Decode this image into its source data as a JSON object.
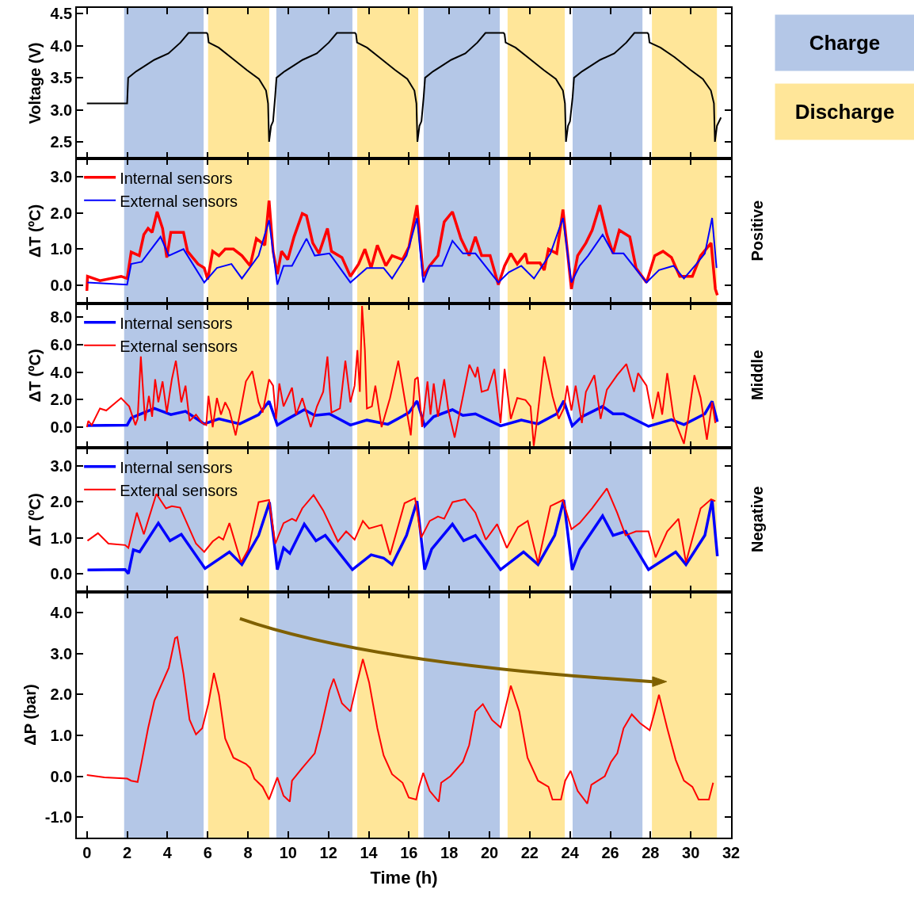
{
  "chart_data": [
    {
      "type": "line",
      "ylabel": "Voltage (V)",
      "annotations": [
        "Charge",
        "Discharge"
      ],
      "xlim": [
        -0.5,
        32
      ],
      "xticks": [
        0,
        2,
        4,
        6,
        8,
        10,
        12,
        14,
        16,
        18,
        20,
        22,
        24,
        26,
        28,
        30,
        32
      ],
      "ylim": [
        2.24,
        4.59
      ],
      "yticks": [
        {
          "value": 2.5,
          "label": "2.5"
        },
        {
          "value": 3.0,
          "label": "3.0"
        },
        {
          "value": 3.5,
          "label": "3.5"
        },
        {
          "value": 4.0,
          "label": "4.0"
        },
        {
          "value": 4.5,
          "label": "4.5"
        }
      ],
      "tick_labels": "y",
      "grid": false,
      "line_style": "solid",
      "bands": [
        {
          "axis": "x",
          "from": 1.85,
          "to": 5.8,
          "color": "#b4c7e7"
        },
        {
          "axis": "x",
          "from": 6.02,
          "to": 9.06,
          "color": "#ffe699"
        },
        {
          "axis": "x",
          "from": 9.41,
          "to": 13.19,
          "color": "#b4c7e7"
        },
        {
          "axis": "x",
          "from": 13.43,
          "to": 16.46,
          "color": "#ffe699"
        },
        {
          "axis": "x",
          "from": 16.73,
          "to": 20.51,
          "color": "#b4c7e7"
        },
        {
          "axis": "x",
          "from": 20.9,
          "to": 23.74,
          "color": "#ffe699"
        },
        {
          "axis": "x",
          "from": 24.13,
          "to": 27.6,
          "color": "#b4c7e7"
        },
        {
          "axis": "x",
          "from": 28.07,
          "to": 31.3,
          "color": "#ffe699"
        }
      ],
      "series": [
        {
          "color": "#000000",
          "x": [
            0,
            2.0,
            2.05,
            2.45,
            2.85,
            3.35,
            4.05,
            4.65,
            5.05,
            5.95,
            6.0,
            6.05,
            6.55,
            7.15,
            7.95,
            8.55,
            8.9,
            9.0,
            9.05,
            9.15,
            9.25,
            9.35,
            9.42,
            9.82,
            10.22,
            10.72,
            11.42,
            12.02,
            12.42,
            13.32,
            13.37,
            13.42,
            13.92,
            14.52,
            15.32,
            15.92,
            16.27,
            16.37,
            16.42,
            16.52,
            16.62,
            16.73,
            16.8,
            17.2,
            17.6,
            18.1,
            18.8,
            19.4,
            19.8,
            20.7,
            20.75,
            20.8,
            21.3,
            21.9,
            22.7,
            23.3,
            23.65,
            23.75,
            23.8,
            23.9,
            24.0,
            24.13,
            24.2,
            24.6,
            25.0,
            25.5,
            26.2,
            26.8,
            27.2,
            27.85,
            27.9,
            27.95,
            28.5,
            29.2,
            30.0,
            30.6,
            31.0,
            31.15,
            31.2,
            31.3,
            31.5
          ],
          "values": [
            3.1,
            3.1,
            3.5,
            3.6,
            3.68,
            3.78,
            3.88,
            4.05,
            4.2,
            4.2,
            4.18,
            4.05,
            3.97,
            3.82,
            3.62,
            3.48,
            3.3,
            3.1,
            2.5,
            2.75,
            2.82,
            3.2,
            3.5,
            3.6,
            3.68,
            3.78,
            3.88,
            4.05,
            4.2,
            4.2,
            4.18,
            4.05,
            3.97,
            3.82,
            3.62,
            3.48,
            3.3,
            3.1,
            2.5,
            2.75,
            2.82,
            3.2,
            3.5,
            3.6,
            3.68,
            3.78,
            3.88,
            4.05,
            4.2,
            4.2,
            4.18,
            4.05,
            3.97,
            3.82,
            3.62,
            3.48,
            3.3,
            3.1,
            2.5,
            2.75,
            2.82,
            3.2,
            3.5,
            3.6,
            3.68,
            3.78,
            3.88,
            4.05,
            4.2,
            4.2,
            4.18,
            4.05,
            3.97,
            3.82,
            3.62,
            3.48,
            3.3,
            3.1,
            2.5,
            2.75,
            2.88
          ]
        }
      ]
    },
    {
      "type": "line",
      "ylabel": "ΔT (ºC)",
      "annotations": [
        "Positive"
      ],
      "xlim": [
        -0.5,
        32
      ],
      "xticks": [
        0,
        2,
        4,
        6,
        8,
        10,
        12,
        14,
        16,
        18,
        20,
        22,
        24,
        26,
        28,
        30,
        32
      ],
      "ylim": [
        -0.5,
        3.5
      ],
      "yticks": [
        {
          "value": 0,
          "label": "0.0"
        },
        {
          "value": 1,
          "label": "1.0"
        },
        {
          "value": 2,
          "label": "2.0"
        },
        {
          "value": 3,
          "label": "3.0"
        }
      ],
      "tick_labels": "y",
      "grid": false,
      "legend": "top left",
      "line_style": "solid",
      "bands": [
        {
          "axis": "x",
          "from": 1.85,
          "to": 5.8,
          "color": "#b4c7e7"
        },
        {
          "axis": "x",
          "from": 6.02,
          "to": 9.06,
          "color": "#ffe699"
        },
        {
          "axis": "x",
          "from": 9.41,
          "to": 13.19,
          "color": "#b4c7e7"
        },
        {
          "axis": "x",
          "from": 13.43,
          "to": 16.46,
          "color": "#ffe699"
        },
        {
          "axis": "x",
          "from": 16.73,
          "to": 20.51,
          "color": "#b4c7e7"
        },
        {
          "axis": "x",
          "from": 20.9,
          "to": 23.74,
          "color": "#ffe699"
        },
        {
          "axis": "x",
          "from": 24.13,
          "to": 27.6,
          "color": "#b4c7e7"
        },
        {
          "axis": "x",
          "from": 28.07,
          "to": 31.3,
          "color": "#ffe699"
        }
      ],
      "series": [
        {
          "name": "Internal sensors",
          "color": "#ff0000",
          "x": [
            0.0,
            0.03,
            0.65,
            1.7,
            2.0,
            2.2,
            2.6,
            2.83,
            3.04,
            3.24,
            3.49,
            3.76,
            3.97,
            4.17,
            4.8,
            5.0,
            5.52,
            5.83,
            6.0,
            6.25,
            6.56,
            6.87,
            7.28,
            7.7,
            8.11,
            8.42,
            8.84,
            9.05,
            9.25,
            9.46,
            9.67,
            9.98,
            10.29,
            10.7,
            10.91,
            11.22,
            11.53,
            11.95,
            12.15,
            12.67,
            13.09,
            13.5,
            13.81,
            14.12,
            14.43,
            14.85,
            15.16,
            15.68,
            16.0,
            16.4,
            16.71,
            17.03,
            17.44,
            17.75,
            18.16,
            18.58,
            18.99,
            19.3,
            19.61,
            20.03,
            20.44,
            20.75,
            21.06,
            21.38,
            21.79,
            21.89,
            22.51,
            22.72,
            22.93,
            23.34,
            23.65,
            24.07,
            24.38,
            24.79,
            25.1,
            25.48,
            25.83,
            26.14,
            26.45,
            26.97,
            27.28,
            27.8,
            28.21,
            28.62,
            29.04,
            29.45,
            30.08,
            30.49,
            31.01,
            31.22,
            31.32
          ],
          "values": [
            -0.15,
            0.25,
            0.13,
            0.25,
            0.19,
            0.92,
            0.82,
            1.4,
            1.57,
            1.46,
            2.03,
            1.57,
            0.77,
            1.46,
            1.46,
            0.94,
            0.59,
            0.48,
            0.16,
            0.94,
            0.82,
            1.0,
            1.0,
            0.82,
            0.54,
            1.29,
            1.11,
            2.34,
            0.94,
            0.31,
            0.94,
            0.71,
            1.34,
            1.98,
            1.92,
            1.17,
            0.88,
            1.57,
            0.94,
            0.77,
            0.25,
            0.59,
            1.0,
            0.48,
            1.11,
            0.54,
            0.82,
            0.71,
            1.06,
            2.21,
            0.25,
            0.54,
            0.82,
            1.75,
            2.03,
            1.29,
            0.82,
            1.34,
            0.82,
            0.82,
            0.02,
            0.54,
            0.88,
            0.59,
            0.88,
            0.62,
            0.62,
            0.42,
            1.0,
            0.88,
            2.09,
            -0.1,
            0.82,
            1.17,
            1.52,
            2.21,
            1.4,
            0.88,
            1.52,
            1.34,
            0.48,
            0.08,
            0.82,
            0.94,
            0.77,
            0.25,
            0.25,
            0.82,
            1.17,
            -0.1,
            -0.27
          ]
        },
        {
          "name": "External sensors",
          "color": "#0000ff",
          "x": [
            0.03,
            2.0,
            2.2,
            2.72,
            3.66,
            4.07,
            4.8,
            5.83,
            6.46,
            7.18,
            7.7,
            8.53,
            9.05,
            9.46,
            9.77,
            10.19,
            10.91,
            11.32,
            12.05,
            13.09,
            13.91,
            14.74,
            15.16,
            15.88,
            16.4,
            16.71,
            17.03,
            17.65,
            18.16,
            18.68,
            19.3,
            20.44,
            20.96,
            21.58,
            22.21,
            23.03,
            23.65,
            24.07,
            24.48,
            24.9,
            25.62,
            26.14,
            26.66,
            27.8,
            28.42,
            29.14,
            29.66,
            30.28,
            30.7,
            31.06,
            31.28
          ],
          "values": [
            0.08,
            0.02,
            0.59,
            0.65,
            1.34,
            0.82,
            1.0,
            0.08,
            0.48,
            0.59,
            0.19,
            0.82,
            1.8,
            0.02,
            0.54,
            0.54,
            1.29,
            0.82,
            0.88,
            0.08,
            0.48,
            0.48,
            0.19,
            0.82,
            1.86,
            0.08,
            0.54,
            0.54,
            1.23,
            0.88,
            0.88,
            0.08,
            0.36,
            0.54,
            0.19,
            0.88,
            1.86,
            0.08,
            0.54,
            0.82,
            1.4,
            0.88,
            0.88,
            0.08,
            0.42,
            0.54,
            0.19,
            0.59,
            0.88,
            1.86,
            0.48
          ]
        }
      ]
    },
    {
      "type": "line",
      "ylabel": "ΔT (ºC)",
      "annotations": [
        "Middle"
      ],
      "xlim": [
        -0.5,
        32
      ],
      "xticks": [
        0,
        2,
        4,
        6,
        8,
        10,
        12,
        14,
        16,
        18,
        20,
        22,
        24,
        26,
        28,
        30,
        32
      ],
      "ylim": [
        -1.5,
        9
      ],
      "yticks": [
        {
          "value": 0,
          "label": "0.0"
        },
        {
          "value": 2,
          "label": "2.0"
        },
        {
          "value": 4,
          "label": "4.0"
        },
        {
          "value": 6,
          "label": "6.0"
        },
        {
          "value": 8,
          "label": "8.0"
        }
      ],
      "tick_labels": "y",
      "grid": false,
      "legend": "top left",
      "line_style": "solid",
      "bands": [
        {
          "axis": "x",
          "from": 1.85,
          "to": 5.8,
          "color": "#b4c7e7"
        },
        {
          "axis": "x",
          "from": 6.02,
          "to": 9.06,
          "color": "#ffe699"
        },
        {
          "axis": "x",
          "from": 9.41,
          "to": 13.19,
          "color": "#b4c7e7"
        },
        {
          "axis": "x",
          "from": 13.43,
          "to": 16.46,
          "color": "#ffe699"
        },
        {
          "axis": "x",
          "from": 16.73,
          "to": 20.51,
          "color": "#b4c7e7"
        },
        {
          "axis": "x",
          "from": 20.9,
          "to": 23.74,
          "color": "#ffe699"
        },
        {
          "axis": "x",
          "from": 24.13,
          "to": 27.6,
          "color": "#b4c7e7"
        },
        {
          "axis": "x",
          "from": 28.07,
          "to": 31.3,
          "color": "#ffe699"
        }
      ],
      "series": [
        {
          "name": "Internal sensors",
          "color": "#0000ff",
          "x": [
            0.03,
            2.0,
            2.2,
            3.35,
            4.17,
            4.9,
            5.83,
            6.56,
            7.59,
            8.53,
            9.05,
            9.46,
            9.98,
            10.8,
            11.32,
            12.05,
            13.09,
            13.91,
            14.95,
            16.0,
            16.4,
            16.78,
            17.23,
            18.16,
            18.68,
            19.3,
            20.55,
            21.58,
            22.41,
            23.34,
            23.69,
            24.11,
            24.59,
            25.62,
            26.14,
            26.66,
            27.9,
            29.04,
            29.66,
            30.7,
            31.06,
            31.32
          ],
          "values": [
            0.12,
            0.15,
            0.67,
            1.36,
            0.91,
            1.15,
            0.24,
            0.6,
            0.24,
            0.91,
            1.88,
            0.15,
            0.6,
            1.27,
            0.85,
            0.97,
            0.15,
            0.51,
            0.21,
            1.06,
            1.91,
            0.09,
            0.76,
            1.27,
            0.85,
            0.97,
            0.09,
            0.51,
            0.24,
            0.97,
            1.91,
            0.09,
            0.76,
            1.51,
            0.97,
            0.97,
            0.06,
            0.54,
            0.18,
            0.97,
            1.88,
            0.39
          ]
        },
        {
          "name": "External sensors",
          "color": "#ff0000",
          "x": [
            0.0,
            0.07,
            0.24,
            0.65,
            0.96,
            1.7,
            2.1,
            2.41,
            2.52,
            2.68,
            2.89,
            3.08,
            3.24,
            3.39,
            3.55,
            3.76,
            3.97,
            4.22,
            4.42,
            4.69,
            4.9,
            5.1,
            5.42,
            5.73,
            5.93,
            6.04,
            6.25,
            6.46,
            6.66,
            6.87,
            7.08,
            7.39,
            7.59,
            7.9,
            8.22,
            8.53,
            8.73,
            9.05,
            9.25,
            9.4,
            9.56,
            9.77,
            10.19,
            10.39,
            10.7,
            11.12,
            11.43,
            11.74,
            11.95,
            12.15,
            12.57,
            12.84,
            13.09,
            13.3,
            13.44,
            13.56,
            13.67,
            13.81,
            13.91,
            14.16,
            14.33,
            14.64,
            15.06,
            15.47,
            15.78,
            16.09,
            16.3,
            16.44,
            16.65,
            16.92,
            17.07,
            17.23,
            17.44,
            17.75,
            17.96,
            18.27,
            18.58,
            19.0,
            19.3,
            19.41,
            19.61,
            19.92,
            20.24,
            20.55,
            20.75,
            21.06,
            21.38,
            21.79,
            22.04,
            22.2,
            22.37,
            22.72,
            23.13,
            23.44,
            23.69,
            23.86,
            24.07,
            24.28,
            24.59,
            24.79,
            25.21,
            25.52,
            25.83,
            26.34,
            26.8,
            27.18,
            27.38,
            27.8,
            28.11,
            28.38,
            28.58,
            28.83,
            29.14,
            29.66,
            29.87,
            30.18,
            30.49,
            30.8,
            31.06,
            31.22
          ],
          "values": [
            0.0,
            0.45,
            0.15,
            1.36,
            1.21,
            2.12,
            1.51,
            0.15,
            0.6,
            5.14,
            0.45,
            2.27,
            0.76,
            3.48,
            1.81,
            3.33,
            1.06,
            3.48,
            4.84,
            1.81,
            3.02,
            0.45,
            0.91,
            0.3,
            0.15,
            2.27,
            0.0,
            2.12,
            0.91,
            1.81,
            1.21,
            -0.6,
            0.91,
            3.33,
            4.08,
            1.81,
            1.06,
            3.48,
            3.02,
            0.6,
            3.18,
            1.51,
            2.87,
            0.91,
            2.12,
            0.0,
            1.51,
            2.57,
            5.14,
            1.06,
            1.36,
            4.84,
            1.81,
            3.02,
            5.6,
            2.57,
            8.83,
            5.6,
            1.36,
            1.51,
            3.02,
            0.0,
            2.12,
            4.84,
            2.12,
            -0.6,
            3.48,
            3.63,
            0.0,
            3.33,
            0.91,
            3.18,
            0.76,
            3.48,
            1.21,
            -0.76,
            1.51,
            4.54,
            3.63,
            4.39,
            2.57,
            2.72,
            4.23,
            0.3,
            4.23,
            0.6,
            2.12,
            1.97,
            1.51,
            -1.36,
            0.6,
            5.14,
            2.27,
            0.6,
            1.36,
            3.02,
            1.21,
            3.02,
            0.3,
            2.57,
            3.78,
            0.6,
            2.72,
            3.78,
            4.6,
            2.57,
            3.93,
            3.02,
            0.6,
            2.57,
            0.91,
            3.93,
            0.76,
            -1.21,
            0.6,
            3.78,
            2.12,
            -0.91,
            1.81,
            0.3
          ]
        }
      ]
    },
    {
      "type": "line",
      "ylabel": "ΔT (ºC)",
      "annotations": [
        "Negative"
      ],
      "xlim": [
        -0.5,
        32
      ],
      "xticks": [
        0,
        2,
        4,
        6,
        8,
        10,
        12,
        14,
        16,
        18,
        20,
        22,
        24,
        26,
        28,
        30,
        32
      ],
      "ylim": [
        -0.5,
        3.5
      ],
      "yticks": [
        {
          "value": 0,
          "label": "0.0"
        },
        {
          "value": 1,
          "label": "1.0"
        },
        {
          "value": 2,
          "label": "2.0"
        },
        {
          "value": 3,
          "label": "3.0"
        }
      ],
      "tick_labels": "y",
      "grid": false,
      "legend": "top left",
      "line_style": "solid",
      "bands": [
        {
          "axis": "x",
          "from": 1.85,
          "to": 5.8,
          "color": "#b4c7e7"
        },
        {
          "axis": "x",
          "from": 6.02,
          "to": 9.06,
          "color": "#ffe699"
        },
        {
          "axis": "x",
          "from": 9.41,
          "to": 13.19,
          "color": "#b4c7e7"
        },
        {
          "axis": "x",
          "from": 13.43,
          "to": 16.46,
          "color": "#ffe699"
        },
        {
          "axis": "x",
          "from": 16.73,
          "to": 20.51,
          "color": "#b4c7e7"
        },
        {
          "axis": "x",
          "from": 20.9,
          "to": 23.74,
          "color": "#ffe699"
        },
        {
          "axis": "x",
          "from": 24.13,
          "to": 27.6,
          "color": "#b4c7e7"
        },
        {
          "axis": "x",
          "from": 28.07,
          "to": 31.3,
          "color": "#ffe699"
        }
      ],
      "series": [
        {
          "name": "Internal sensors",
          "color": "#0000ff",
          "x": [
            0.03,
            1.9,
            2.06,
            2.31,
            2.62,
            3.55,
            4.13,
            4.69,
            5.87,
            7.08,
            7.7,
            8.53,
            9.07,
            9.46,
            9.77,
            10.08,
            10.8,
            11.38,
            11.84,
            13.19,
            14.12,
            14.74,
            15.16,
            15.88,
            16.4,
            16.78,
            17.13,
            18.16,
            18.72,
            19.3,
            20.55,
            21.69,
            22.41,
            23.24,
            23.69,
            24.11,
            24.48,
            25.62,
            26.14,
            26.76,
            27.9,
            29.25,
            29.76,
            30.7,
            31.06,
            31.32
          ],
          "values": [
            0.11,
            0.12,
            0.01,
            0.67,
            0.61,
            1.41,
            0.92,
            1.1,
            0.15,
            0.61,
            0.26,
            1.07,
            1.99,
            0.12,
            0.72,
            0.57,
            1.38,
            0.92,
            1.07,
            0.12,
            0.53,
            0.44,
            0.26,
            1.07,
            2.02,
            0.12,
            0.69,
            1.38,
            0.92,
            1.07,
            0.12,
            0.61,
            0.26,
            1.07,
            2.05,
            0.11,
            0.67,
            1.61,
            1.07,
            1.18,
            0.12,
            0.61,
            0.26,
            1.07,
            2.05,
            0.49
          ]
        },
        {
          "name": "External sensors",
          "color": "#ff0000",
          "x": [
            0.03,
            0.55,
            1.07,
            1.9,
            2.06,
            2.48,
            2.83,
            3.45,
            3.93,
            4.22,
            4.63,
            5.42,
            5.83,
            6.25,
            6.56,
            6.77,
            7.08,
            7.66,
            8.01,
            8.53,
            9.05,
            9.36,
            9.77,
            10.19,
            10.39,
            10.7,
            11.26,
            11.74,
            12.47,
            12.88,
            13.3,
            13.71,
            14.02,
            14.64,
            15.06,
            15.78,
            16.3,
            16.61,
            17.03,
            17.44,
            17.75,
            18.16,
            18.78,
            19.3,
            19.82,
            20.38,
            20.86,
            21.42,
            21.9,
            22.41,
            23.03,
            23.65,
            24.07,
            24.48,
            25.1,
            25.83,
            26.34,
            26.76,
            27.28,
            27.9,
            28.25,
            28.83,
            29.39,
            29.76,
            30.49,
            31.01,
            31.22
          ],
          "values": [
            0.92,
            1.13,
            0.84,
            0.8,
            0.72,
            1.7,
            1.1,
            2.22,
            1.82,
            1.88,
            1.84,
            0.84,
            0.61,
            0.9,
            1.03,
            0.95,
            1.41,
            0.32,
            0.67,
            1.99,
            2.05,
            0.84,
            1.41,
            1.53,
            1.47,
            1.82,
            2.19,
            1.76,
            0.9,
            1.18,
            0.95,
            1.47,
            1.26,
            1.36,
            0.53,
            1.96,
            2.1,
            1.01,
            1.47,
            1.59,
            1.53,
            1.99,
            2.07,
            1.7,
            0.95,
            1.38,
            0.72,
            1.3,
            1.47,
            0.3,
            1.88,
            2.05,
            1.24,
            1.41,
            1.82,
            2.37,
            1.7,
            1.07,
            1.18,
            1.18,
            0.46,
            1.18,
            1.53,
            0.32,
            1.82,
            2.07,
            2.02
          ]
        }
      ]
    },
    {
      "type": "line",
      "ylabel": "ΔP (bar)",
      "xlabel": "Time (h)",
      "xlim": [
        -0.5,
        32
      ],
      "xticks": [
        0,
        2,
        4,
        6,
        8,
        10,
        12,
        14,
        16,
        18,
        20,
        22,
        24,
        26,
        28,
        30,
        32
      ],
      "ylim": [
        -1.5,
        4.5
      ],
      "yticks": [
        {
          "value": -1,
          "label": "-1.0"
        },
        {
          "value": 0,
          "label": "0.0"
        },
        {
          "value": 1,
          "label": "1.0"
        },
        {
          "value": 2,
          "label": "2.0"
        },
        {
          "value": 3,
          "label": "3.0"
        },
        {
          "value": 4,
          "label": "4.0"
        }
      ],
      "grid": false,
      "line_style": "solid",
      "bands": [
        {
          "axis": "x",
          "from": 1.85,
          "to": 5.8,
          "color": "#b4c7e7"
        },
        {
          "axis": "x",
          "from": 6.02,
          "to": 9.06,
          "color": "#ffe699"
        },
        {
          "axis": "x",
          "from": 9.41,
          "to": 13.19,
          "color": "#b4c7e7"
        },
        {
          "axis": "x",
          "from": 13.43,
          "to": 16.46,
          "color": "#ffe699"
        },
        {
          "axis": "x",
          "from": 16.73,
          "to": 20.51,
          "color": "#b4c7e7"
        },
        {
          "axis": "x",
          "from": 20.9,
          "to": 23.74,
          "color": "#ffe699"
        },
        {
          "axis": "x",
          "from": 24.13,
          "to": 27.6,
          "color": "#b4c7e7"
        },
        {
          "axis": "x",
          "from": 28.07,
          "to": 31.3,
          "color": "#ffe699"
        }
      ],
      "series": [
        {
          "color": "#ff0000",
          "x": [
            0.0,
            0.87,
            2.0,
            2.2,
            2.52,
            2.72,
            3.04,
            3.35,
            3.76,
            4.07,
            4.38,
            4.49,
            4.8,
            5.1,
            5.42,
            5.73,
            6.04,
            6.31,
            6.56,
            6.87,
            7.28,
            7.9,
            8.11,
            8.32,
            8.73,
            9.05,
            9.46,
            9.77,
            10.08,
            10.19,
            10.7,
            11.32,
            11.63,
            12.05,
            12.26,
            12.67,
            13.09,
            13.4,
            13.71,
            14.02,
            14.43,
            14.74,
            15.16,
            15.68,
            15.99,
            16.36,
            16.5,
            16.71,
            17.03,
            17.48,
            17.6,
            18.06,
            18.68,
            18.99,
            19.3,
            19.67,
            20.13,
            20.55,
            20.75,
            21.06,
            21.48,
            21.89,
            22.41,
            22.93,
            23.13,
            23.55,
            23.76,
            24.03,
            24.38,
            24.86,
            25.06,
            25.73,
            26.04,
            26.35,
            26.66,
            27.07,
            27.49,
            27.96,
            28.21,
            28.42,
            28.83,
            29.25,
            29.66,
            30.08,
            30.39,
            30.9,
            31.11
          ],
          "values": [
            0.03,
            -0.03,
            -0.06,
            -0.11,
            -0.14,
            0.35,
            1.17,
            1.84,
            2.3,
            2.65,
            3.37,
            3.4,
            2.5,
            1.38,
            1.02,
            1.17,
            1.78,
            2.52,
            1.99,
            0.92,
            0.45,
            0.3,
            0.2,
            -0.06,
            -0.26,
            -0.57,
            -0.03,
            -0.48,
            -0.62,
            -0.11,
            0.2,
            0.56,
            1.17,
            2.09,
            2.38,
            1.78,
            1.58,
            2.24,
            2.86,
            2.29,
            1.17,
            0.51,
            0.05,
            -0.16,
            -0.52,
            -0.57,
            -0.26,
            0.08,
            -0.36,
            -0.62,
            -0.16,
            0.0,
            0.35,
            0.76,
            1.58,
            1.76,
            1.37,
            1.19,
            1.58,
            2.21,
            1.58,
            0.45,
            -0.11,
            -0.26,
            -0.57,
            -0.57,
            -0.11,
            0.13,
            -0.36,
            -0.67,
            -0.21,
            0.0,
            0.35,
            0.56,
            1.17,
            1.51,
            1.29,
            1.12,
            1.58,
            1.99,
            1.17,
            0.4,
            -0.11,
            -0.26,
            -0.57,
            -0.57,
            -0.16
          ]
        }
      ]
    }
  ]
}
